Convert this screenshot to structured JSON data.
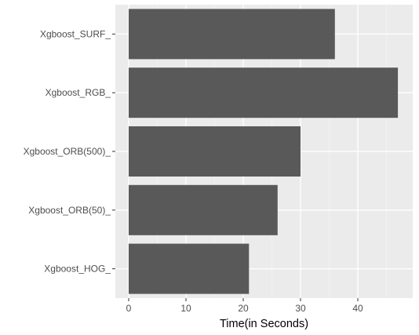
{
  "chart_data": {
    "type": "bar",
    "orientation": "horizontal",
    "categories": [
      "Xgboost_SURF_",
      "Xgboost_RGB_",
      "Xgboost_ORB(500)_",
      "Xgboost_ORB(50)_",
      "Xgboost_HOG_"
    ],
    "values": [
      36,
      47,
      30,
      26,
      21
    ],
    "xlabel": "Time(in Seconds)",
    "ylabel": "",
    "xlim": [
      0,
      49
    ],
    "xticks": [
      0,
      10,
      20,
      30,
      40
    ],
    "grid": true,
    "colors": {
      "bar": "#595959",
      "panel": "#ebebeb",
      "grid_major": "#ffffff",
      "grid_minor": "#f5f5f5",
      "tick_text": "#4d4d4d",
      "title_text": "#000000"
    }
  }
}
